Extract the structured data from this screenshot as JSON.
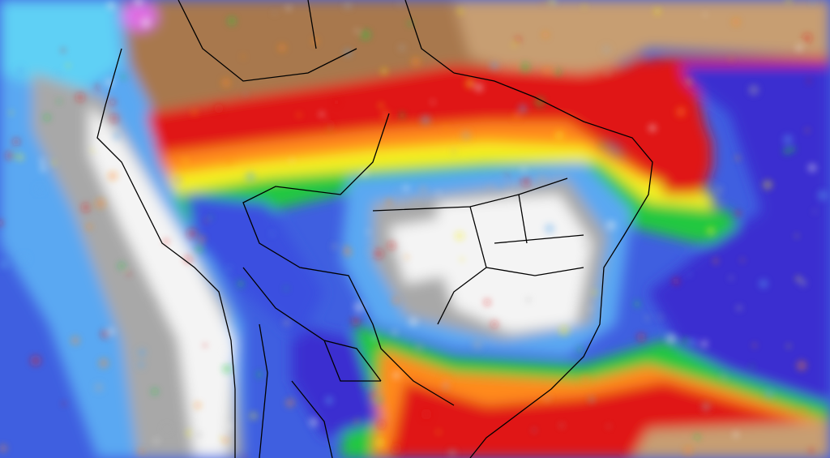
{
  "map": {
    "palette": {
      "ocean_blue": "#3f5fe0",
      "light_blue": "#5aa8f2",
      "cyan": "#5fd0f5",
      "gray": "#a8a8a8",
      "white": "#f4f4f4",
      "brown": "#a8784e",
      "tan": "#c79e72",
      "red": "#e01818",
      "orange": "#ff8a1a",
      "yellow": "#f5f020",
      "green": "#22c840",
      "purple": "#3a2fd0",
      "pink": "#e070e8",
      "border": "#000000"
    }
  }
}
